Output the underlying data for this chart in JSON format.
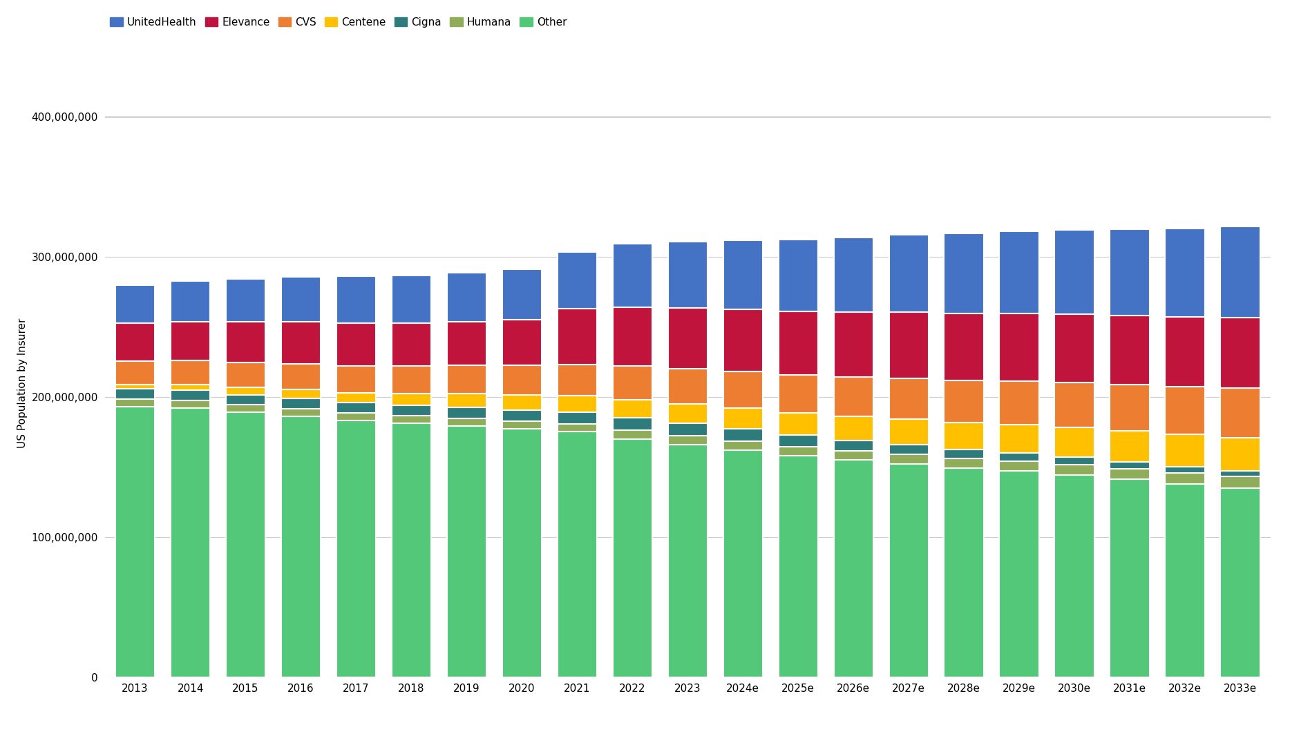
{
  "years": [
    "2013",
    "2014",
    "2015",
    "2016",
    "2017",
    "2018",
    "2019",
    "2020",
    "2021",
    "2022",
    "2023",
    "2024e",
    "2025e",
    "2026e",
    "2027e",
    "2028e",
    "2029e",
    "2030e",
    "2031e",
    "2032e",
    "2033e"
  ],
  "stack_order": [
    "Other",
    "Humana",
    "Cigna",
    "Centene",
    "CVS",
    "Elevance",
    "UnitedHealth"
  ],
  "series": {
    "Other": [
      193000000,
      192000000,
      189000000,
      186000000,
      183000000,
      181000000,
      179000000,
      177000000,
      175000000,
      170000000,
      166000000,
      162000000,
      158000000,
      155000000,
      152000000,
      149000000,
      147000000,
      144000000,
      141000000,
      138000000,
      135000000
    ],
    "Humana": [
      5500000,
      5500000,
      5500000,
      5500000,
      5500000,
      5500000,
      5500000,
      5500000,
      5500000,
      6000000,
      6000000,
      6500000,
      6500000,
      6500000,
      7000000,
      7000000,
      7000000,
      7500000,
      7500000,
      7500000,
      8000000
    ],
    "Cigna": [
      7000000,
      7000000,
      7000000,
      7500000,
      7500000,
      7500000,
      8000000,
      8000000,
      8500000,
      9000000,
      9000000,
      8500000,
      8000000,
      7500000,
      7000000,
      6500000,
      6000000,
      5500000,
      5000000,
      4500000,
      4000000
    ],
    "Centene": [
      3000000,
      4000000,
      5000000,
      6000000,
      7000000,
      8500000,
      10000000,
      11000000,
      12000000,
      13000000,
      14000000,
      15000000,
      16000000,
      17000000,
      18000000,
      19000000,
      20000000,
      21000000,
      22000000,
      23000000,
      24000000
    ],
    "CVS": [
      17000000,
      17500000,
      18000000,
      18500000,
      19000000,
      19500000,
      20000000,
      21000000,
      22000000,
      24000000,
      25000000,
      26000000,
      27000000,
      28000000,
      29000000,
      30000000,
      31000000,
      32000000,
      33000000,
      34000000,
      35000000
    ],
    "Elevance": [
      27000000,
      27500000,
      29000000,
      30000000,
      30500000,
      30500000,
      31000000,
      32500000,
      40000000,
      42000000,
      43500000,
      44500000,
      45500000,
      46500000,
      47500000,
      48000000,
      48500000,
      49000000,
      49500000,
      50000000,
      50500000
    ],
    "UnitedHealth": [
      27000000,
      29000000,
      30500000,
      32000000,
      33500000,
      34000000,
      35000000,
      36000000,
      40000000,
      45000000,
      47000000,
      49000000,
      51000000,
      53000000,
      55000000,
      57000000,
      58500000,
      60000000,
      61500000,
      63000000,
      65000000
    ]
  },
  "colors": {
    "Other": "#52c878",
    "Humana": "#8fac58",
    "Cigna": "#2d7b7b",
    "Centene": "#ffc000",
    "CVS": "#ed7d31",
    "Elevance": "#c0143c",
    "UnitedHealth": "#4472c4"
  },
  "legend_order": [
    "UnitedHealth",
    "Elevance",
    "CVS",
    "Centene",
    "Cigna",
    "Humana",
    "Other"
  ],
  "ylabel": "US Population by Insurer",
  "ylim": [
    0,
    420000000
  ],
  "yticks": [
    0,
    100000000,
    200000000,
    300000000,
    400000000
  ],
  "background_color": "#ffffff"
}
